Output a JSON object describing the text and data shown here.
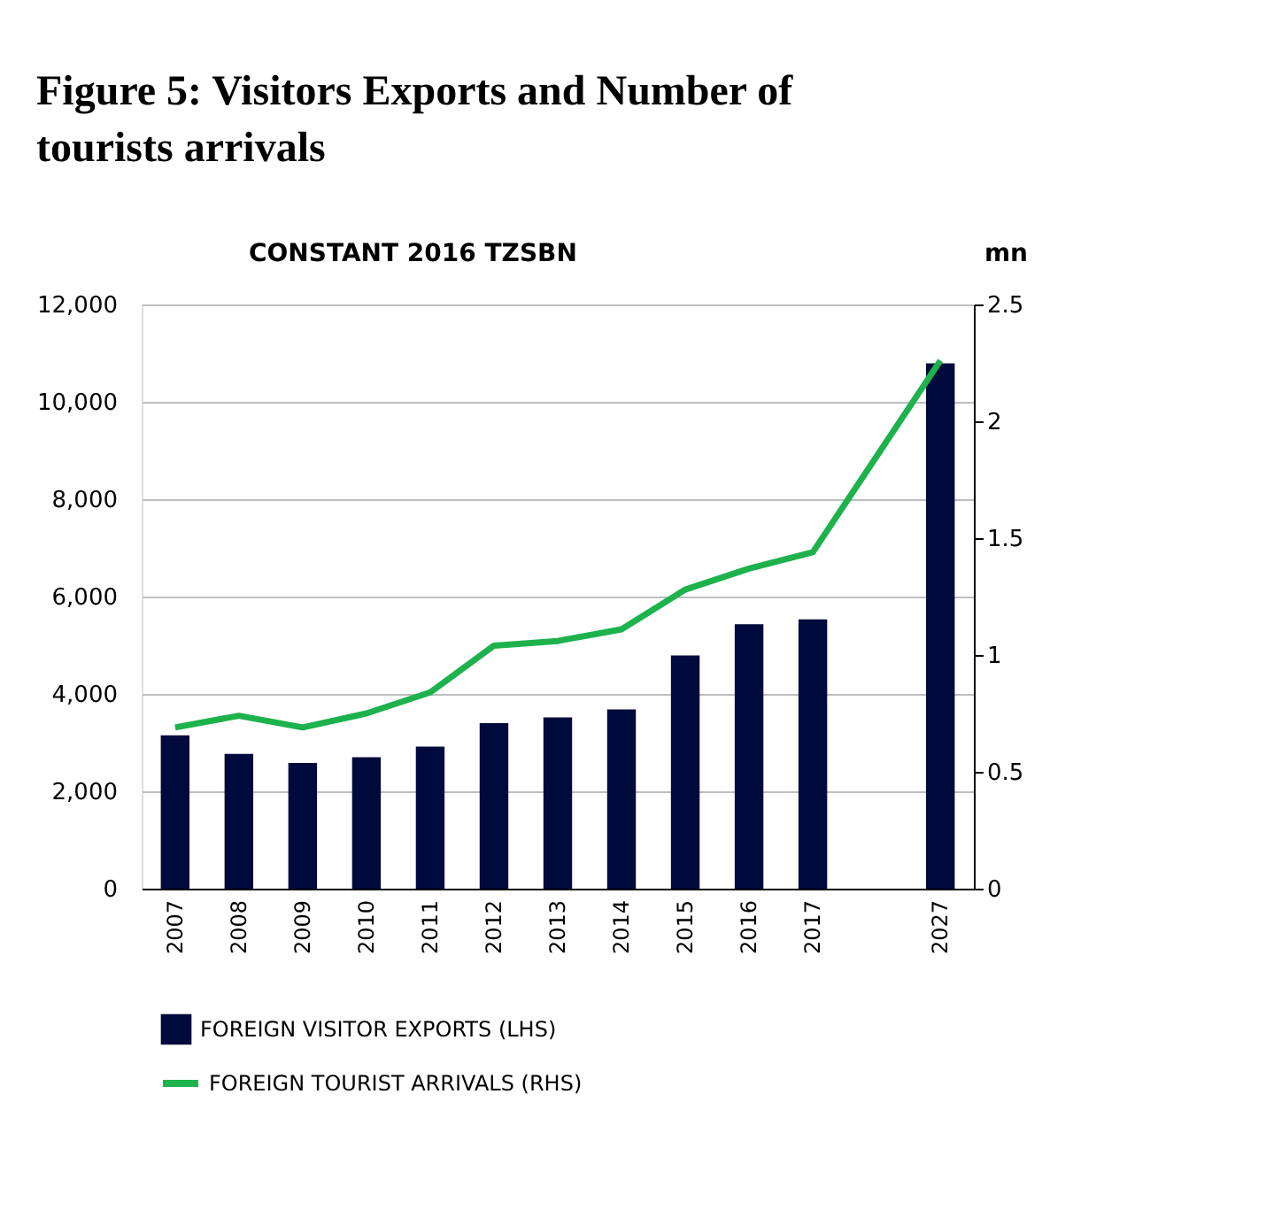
{
  "chart_data": {
    "type": "bar",
    "title": "Figure 5: Visitors Exports and Number of tourists arrivals",
    "ylabel": "CONSTANT 2016 TZSBN",
    "y2label": "mn",
    "categories": [
      "2007",
      "2008",
      "2009",
      "2010",
      "2011",
      "2012",
      "2013",
      "2014",
      "2015",
      "2016",
      "2017",
      null,
      "2027"
    ],
    "series": [
      {
        "name": "FOREIGN VISITOR EXPORTS (LHS)",
        "color": "#000a3c",
        "values": [
          3150,
          2770,
          2580,
          2700,
          2920,
          3400,
          3520,
          3680,
          4790,
          5430,
          5530,
          null,
          10790
        ]
      },
      {
        "name": "FOREIGN TOURIST ARRIVALS (RHS)",
        "type": "line",
        "axis": "y2",
        "color": "#1db24c",
        "values": [
          0.69,
          0.74,
          0.69,
          0.75,
          0.84,
          1.04,
          1.06,
          1.11,
          1.28,
          1.37,
          1.44,
          null,
          2.26
        ]
      }
    ],
    "ylim": [
      0,
      12000
    ],
    "yticks": [
      0,
      {
        "value": 2000,
        "label": "2,000"
      },
      {
        "value": 4000,
        "label": "4,000"
      },
      {
        "value": 6000,
        "label": "6,000"
      },
      {
        "value": 8000,
        "label": "8,000"
      },
      {
        "value": 10000,
        "label": "10,000"
      },
      {
        "value": 12000,
        "label": "12,000"
      }
    ],
    "y2lim": [
      0,
      2.5
    ],
    "y2ticks": [
      0,
      0.5,
      1,
      1.5,
      2,
      2.5
    ],
    "grid": "y",
    "legend": "bottom"
  }
}
